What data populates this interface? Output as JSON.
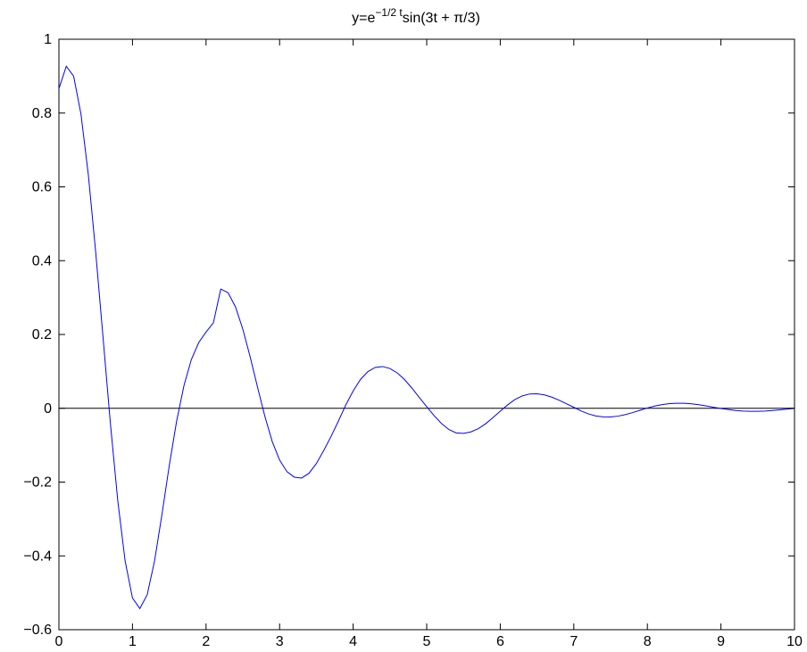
{
  "chart_data": {
    "type": "line",
    "title": {
      "prefix": "y=e",
      "superscript": "−1/2 t",
      "suffix": "sin(3t + π/3)"
    },
    "xlabel": "",
    "ylabel": "",
    "xlim": [
      0,
      10
    ],
    "ylim": [
      -0.6,
      1
    ],
    "xticks": [
      0,
      1,
      2,
      3,
      4,
      5,
      6,
      7,
      8,
      9,
      10
    ],
    "yticks": [
      -0.6,
      -0.4,
      -0.2,
      0,
      0.2,
      0.4,
      0.6,
      0.8,
      1
    ],
    "xtick_labels": [
      "0",
      "1",
      "2",
      "3",
      "4",
      "5",
      "6",
      "7",
      "8",
      "9",
      "10"
    ],
    "ytick_labels": [
      "−0.6",
      "−0.4",
      "−0.2",
      "0",
      "0.2",
      "0.4",
      "0.6",
      "0.8",
      "1"
    ],
    "grid": false,
    "baseline": {
      "y": 0,
      "color": "#000000"
    },
    "series": [
      {
        "color": "#0000ff",
        "x": [
          0,
          0.1,
          0.2,
          0.3,
          0.4,
          0.5,
          0.6,
          0.7,
          0.8,
          0.9,
          1.0,
          1.1,
          1.2,
          1.3,
          1.4,
          1.5,
          1.6,
          1.7,
          1.8,
          1.9,
          2.0,
          2.1,
          2.2,
          2.3,
          2.4,
          2.5,
          2.6,
          2.7,
          2.8,
          2.9,
          3.0,
          3.1,
          3.2,
          3.3,
          3.4,
          3.5,
          3.6,
          3.7,
          3.8,
          3.9,
          4.0,
          4.1,
          4.2,
          4.3,
          4.4,
          4.5,
          4.6,
          4.7,
          4.8,
          4.9,
          5.0,
          5.1,
          5.2,
          5.3,
          5.4,
          5.5,
          5.6,
          5.7,
          5.8,
          5.9,
          6.0,
          6.1,
          6.2,
          6.3,
          6.4,
          6.5,
          6.6,
          6.7,
          6.8,
          6.9,
          7.0,
          7.1,
          7.2,
          7.3,
          7.4,
          7.5,
          7.6,
          7.7,
          7.8,
          7.9,
          8.0,
          8.1,
          8.2,
          8.3,
          8.4,
          8.5,
          8.6,
          8.7,
          8.8,
          8.9,
          9.0,
          9.1,
          9.2,
          9.3,
          9.4,
          9.5,
          9.6,
          9.7,
          9.8,
          9.9,
          10.0
        ],
        "y": [
          0.866,
          0.9268,
          0.9,
          0.7969,
          0.6326,
          0.4231,
          0.1917,
          -0.0416,
          -0.2504,
          -0.4137,
          -0.5141,
          -0.5427,
          -0.5054,
          -0.4138,
          -0.2887,
          -0.1555,
          -0.0351,
          0.0617,
          0.1317,
          0.1779,
          0.2065,
          0.2316,
          0.323,
          0.313,
          0.275,
          0.2146,
          0.1392,
          0.0573,
          -0.0221,
          -0.0901,
          -0.1402,
          -0.1718,
          -0.1866,
          -0.189,
          -0.176,
          -0.1498,
          -0.1145,
          -0.076,
          -0.0345,
          0.009,
          0.0469,
          0.0783,
          0.0993,
          0.1107,
          0.1131,
          0.1077,
          0.0958,
          0.0776,
          0.0544,
          0.0293,
          0.0043,
          -0.0198,
          -0.041,
          -0.0574,
          -0.0667,
          -0.068,
          -0.064,
          -0.0555,
          -0.0421,
          -0.0254,
          -0.0077,
          0.0092,
          0.0236,
          0.0336,
          0.0388,
          0.0392,
          0.0362,
          0.0302,
          0.0219,
          0.0122,
          0.0027,
          -0.0074,
          -0.0153,
          -0.0209,
          -0.0234,
          -0.0235,
          -0.0213,
          -0.0172,
          -0.0116,
          -0.0054,
          0.0008,
          0.006,
          0.01,
          0.0126,
          0.0137,
          0.0135,
          0.0121,
          0.0097,
          0.0064,
          0.0028,
          -0.0005,
          -0.0034,
          -0.006,
          -0.0076,
          -0.0083,
          -0.0083,
          -0.0075,
          -0.006,
          -0.0041,
          -0.002,
          -0.0002
        ]
      }
    ]
  }
}
